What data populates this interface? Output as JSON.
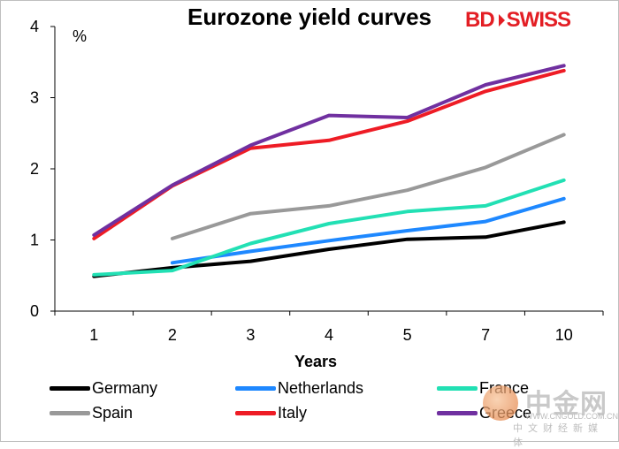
{
  "chart_data": {
    "type": "line",
    "title": "Eurozone yield curves",
    "unit_label": "%",
    "xlabel": "Years",
    "categories": [
      "1",
      "2",
      "3",
      "4",
      "5",
      "7",
      "10"
    ],
    "ylim": [
      0,
      4
    ],
    "yticks": [
      "0",
      "1",
      "2",
      "3",
      "4"
    ],
    "grid": false,
    "legend_position": "bottom",
    "series": [
      {
        "name": "Germany",
        "color": "#000000",
        "values": [
          0.49,
          0.61,
          0.7,
          0.87,
          1.01,
          1.04,
          1.25
        ]
      },
      {
        "name": "Netherlands",
        "color": "#1e88ff",
        "values": [
          null,
          0.68,
          0.84,
          0.99,
          1.13,
          1.26,
          1.58
        ]
      },
      {
        "name": "France",
        "color": "#22e0b4",
        "values": [
          0.51,
          0.57,
          0.95,
          1.23,
          1.4,
          1.48,
          1.84
        ]
      },
      {
        "name": "Spain",
        "color": "#999999",
        "values": [
          null,
          1.02,
          1.37,
          1.48,
          1.7,
          2.02,
          2.48
        ]
      },
      {
        "name": "Italy",
        "color": "#ee1c25",
        "values": [
          1.02,
          1.76,
          2.29,
          2.4,
          2.67,
          3.09,
          3.38
        ]
      },
      {
        "name": "Greece",
        "color": "#7030a0",
        "values": [
          1.07,
          1.77,
          2.33,
          2.75,
          2.72,
          3.18,
          3.45
        ]
      }
    ]
  },
  "brand": {
    "part1": "BD",
    "part2": "SWISS"
  },
  "watermark": {
    "text": "中金网",
    "url": "WWW.CNGOLD.COM.CN",
    "sub": "中文财经新媒体"
  }
}
